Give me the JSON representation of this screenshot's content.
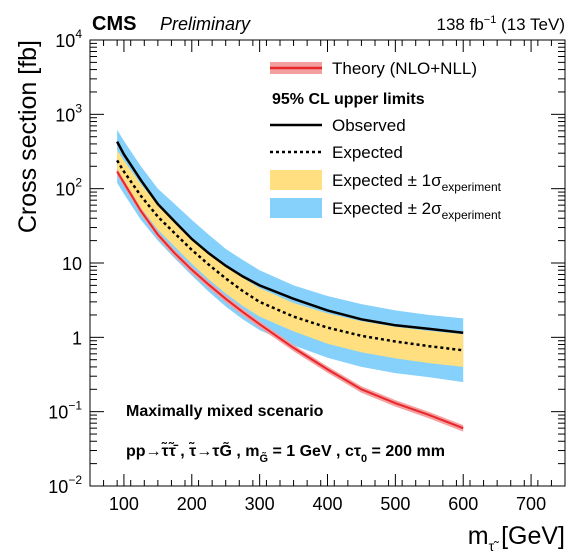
{
  "header": {
    "experiment": "CMS",
    "status": "Preliminary",
    "lumi_value": "138 fb",
    "lumi_exp": "−1",
    "energy": " (13 TeV)"
  },
  "legend": {
    "theory": "Theory (NLO+NLL)",
    "heading": "95% CL upper limits",
    "observed": "Observed",
    "expected": "Expected",
    "band1_prefix": "Expected ± 1σ",
    "band2_prefix": "Expected ± 2σ",
    "band_sub": "experiment"
  },
  "annotation": {
    "scenario": "Maximally mixed scenario",
    "process_a": "pp→τ̃τ̃̄ ,  τ̃→τG̃ , m",
    "process_a_sub": "G̃",
    "process_b": " = 1 GeV , cτ",
    "process_b_sub": "0",
    "process_c": " = 200 mm"
  },
  "chart_data": {
    "type": "line",
    "title": "",
    "xlabel": "m",
    "xlabel_sub": "τ̃",
    "xlabel_unit": " [GeV]",
    "ylabel": "Cross section [fb]",
    "xlim": [
      50,
      750
    ],
    "ylim": [
      0.01,
      10000
    ],
    "yscale": "log",
    "x_ticks": [
      100,
      200,
      300,
      400,
      500,
      600,
      700
    ],
    "y_ticks": [
      {
        "value": 0.01,
        "base": "10",
        "exp": "−2"
      },
      {
        "value": 0.1,
        "base": "10",
        "exp": "−1"
      },
      {
        "value": 1,
        "base": "1",
        "exp": ""
      },
      {
        "value": 10,
        "base": "10",
        "exp": ""
      },
      {
        "value": 100,
        "base": "10",
        "exp": "2"
      },
      {
        "value": 1000,
        "base": "10",
        "exp": "3"
      },
      {
        "value": 10000,
        "base": "10",
        "exp": "4"
      }
    ],
    "grid": false,
    "legend_position": "top-right",
    "colors": {
      "band1": "#ffdf7f",
      "band2": "#85d1fb",
      "theory": "#e8262b",
      "theory_band": "#f4a0a0",
      "observed": "#000000",
      "expected": "#000000"
    },
    "x": [
      90,
      100,
      125,
      150,
      175,
      200,
      225,
      250,
      275,
      300,
      350,
      400,
      450,
      500,
      550,
      600
    ],
    "series": [
      {
        "name": "Observed",
        "values": [
          430,
          290,
          130,
          62,
          36,
          21,
          13.5,
          9.2,
          6.6,
          5.0,
          3.3,
          2.3,
          1.75,
          1.45,
          1.3,
          1.15
        ]
      },
      {
        "name": "Expected",
        "values": [
          240,
          170,
          80,
          42,
          25,
          15,
          9.5,
          6.2,
          4.2,
          3.0,
          1.9,
          1.35,
          1.05,
          0.88,
          0.76,
          0.67
        ]
      },
      {
        "name": "Expected ± 1σ",
        "role": "band",
        "low": [
          170,
          120,
          55,
          28,
          16.5,
          9.8,
          6.0,
          3.9,
          2.65,
          1.9,
          1.2,
          0.82,
          0.63,
          0.52,
          0.45,
          0.4
        ],
        "high": [
          330,
          240,
          115,
          60,
          36,
          22,
          14,
          9.0,
          6.3,
          4.6,
          2.9,
          2.1,
          1.65,
          1.38,
          1.22,
          1.1
        ]
      },
      {
        "name": "Expected ± 2σ",
        "role": "band",
        "low": [
          120,
          85,
          38,
          20,
          11.5,
          6.8,
          4.1,
          2.6,
          1.75,
          1.25,
          0.78,
          0.53,
          0.4,
          0.33,
          0.29,
          0.25
        ],
        "high": [
          620,
          440,
          200,
          100,
          62,
          38,
          24,
          15.5,
          11,
          8.0,
          5.0,
          3.6,
          2.8,
          2.3,
          2.0,
          1.8
        ]
      },
      {
        "name": "Theory (NLO+NLL)",
        "values": [
          170,
          120,
          50,
          24,
          13.5,
          8.1,
          5.1,
          3.3,
          2.2,
          1.5,
          0.72,
          0.37,
          0.2,
          0.13,
          0.09,
          0.06
        ]
      }
    ]
  }
}
